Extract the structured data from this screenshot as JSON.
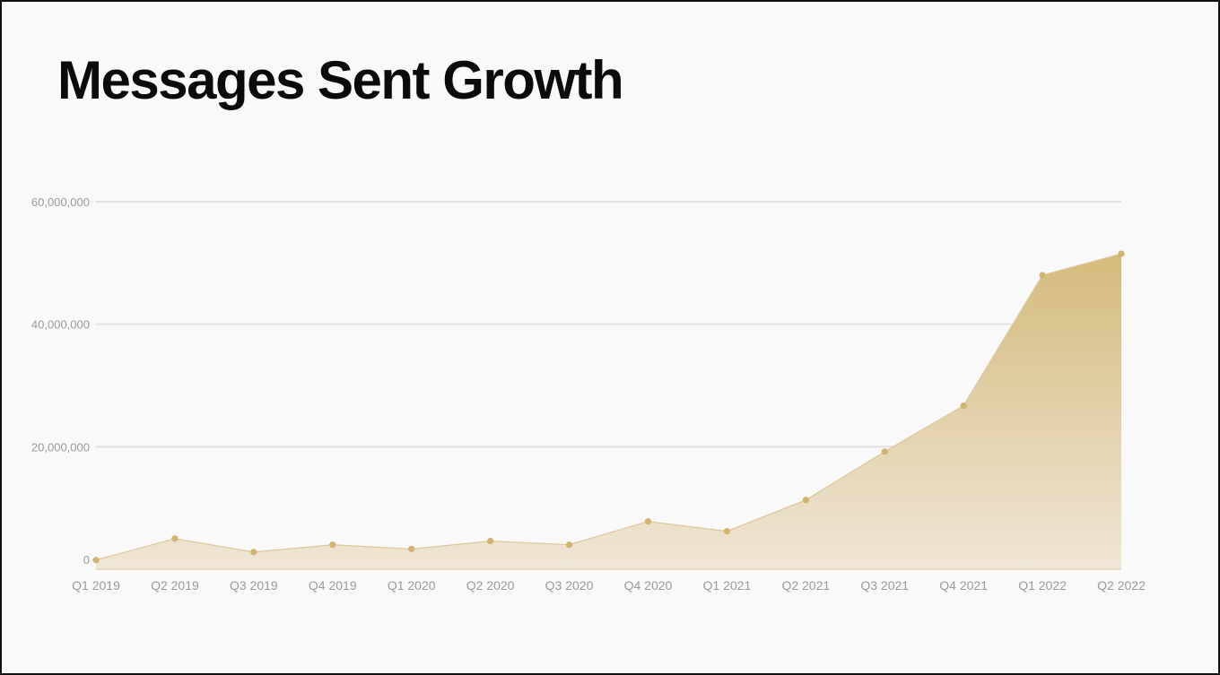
{
  "colors": {
    "background": "#f9f9f9",
    "title": "#0b0b0b",
    "grid": "#e3e3e3",
    "tick_label": "#9a9a9a",
    "area_top": "#d4bb7c",
    "area_bottom": "#efe6d6",
    "line": "#dcc79a",
    "marker": "#d2b46e"
  },
  "chart_data": {
    "type": "area",
    "title": "Messages Sent Growth",
    "xlabel": "",
    "ylabel": "",
    "categories": [
      "Q1 2019",
      "Q2 2019",
      "Q3 2019",
      "Q4 2019",
      "Q1 2020",
      "Q2 2020",
      "Q3 2020",
      "Q4 2020",
      "Q1 2021",
      "Q2 2021",
      "Q3 2021",
      "Q4 2021",
      "Q1 2022",
      "Q2 2022"
    ],
    "series": [
      {
        "values": [
          1500000,
          5000000,
          2800000,
          4000000,
          3300000,
          4600000,
          4000000,
          7800000,
          6200000,
          11300000,
          19200000,
          26700000,
          48000000,
          51500000
        ]
      }
    ],
    "y_ticks": [
      0,
      20000000,
      40000000,
      60000000
    ],
    "y_tick_labels": [
      "0",
      "20,000,000",
      "40,000,000",
      "60,000,000"
    ],
    "ylim": [
      0,
      60000000
    ],
    "grid": true,
    "markers": true,
    "legend": "none"
  }
}
